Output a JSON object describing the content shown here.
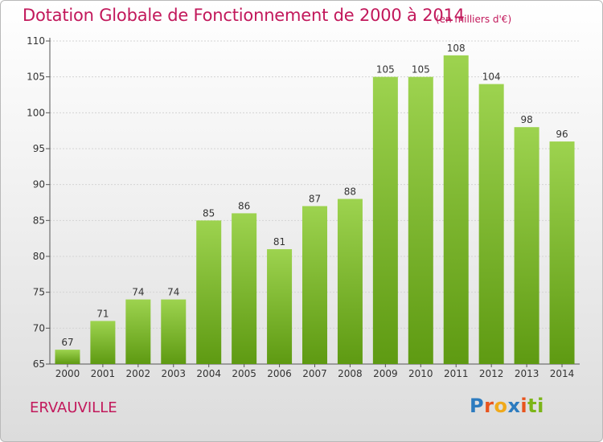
{
  "header": {
    "title": "Dotation Globale de Fonctionnement de 2000 à 2014",
    "unit": "(en milliers d'€)"
  },
  "footer": {
    "commune": "ERVAUVILLE",
    "logo": "Proxiti"
  },
  "colors": {
    "accent": "#c2185b",
    "bar_top": "#9dd34f",
    "bar_bottom": "#5e9a12"
  },
  "chart_data": {
    "type": "bar",
    "title": "Dotation Globale de Fonctionnement de 2000 à 2014",
    "subtitle": "(en milliers d'€)",
    "xlabel": "",
    "ylabel": "",
    "categories": [
      "2000",
      "2001",
      "2002",
      "2003",
      "2004",
      "2005",
      "2006",
      "2007",
      "2008",
      "2009",
      "2010",
      "2011",
      "2012",
      "2013",
      "2014"
    ],
    "values": [
      67,
      71,
      74,
      74,
      85,
      86,
      81,
      87,
      88,
      105,
      105,
      108,
      104,
      98,
      96
    ],
    "ylim": [
      65,
      110
    ],
    "yticks": [
      65,
      70,
      75,
      80,
      85,
      90,
      95,
      100,
      105,
      110
    ],
    "grid": "horizontal",
    "legend": "none",
    "data_labels": true
  }
}
